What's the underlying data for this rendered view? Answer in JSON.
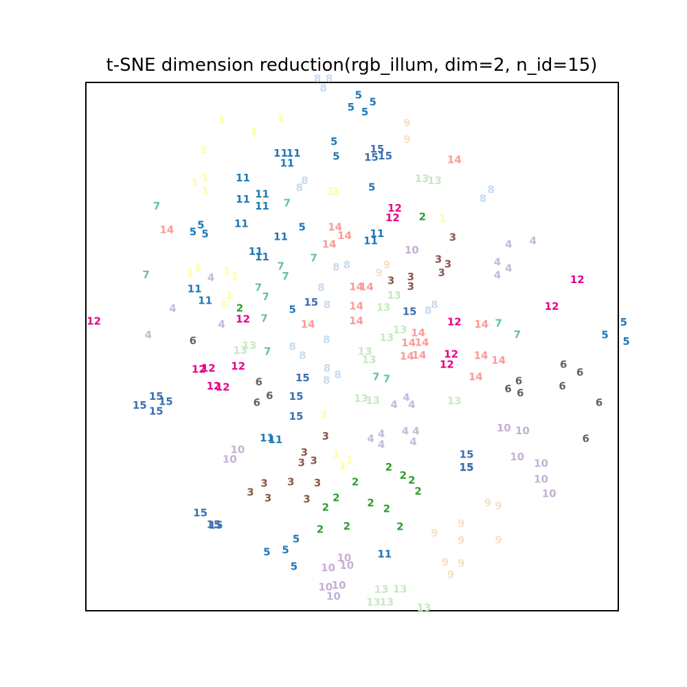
{
  "chart_data": {
    "type": "scatter",
    "title": "t-SNE dimension reduction(rgb_illum, dim=2, n_id=15)",
    "xlabel": "",
    "ylabel": "",
    "xlim": [
      0,
      100
    ],
    "ylim": [
      0,
      100
    ],
    "grid": false,
    "legend": "none",
    "colors": {
      "1": "#ffff99",
      "2": "#2ca02c",
      "3": "#8c564b",
      "4": "#bcbddc",
      "5": "#1f77b4",
      "6": "#636363",
      "7": "#66c2a5",
      "8": "#c6dbef",
      "9": "#f5e1c8",
      "10": "#c5b0d5",
      "11": "#1f77b4",
      "12": "#e7008a",
      "13": "#c7e9c0",
      "14": "#fb9a99",
      "15": "#3a6eb0"
    },
    "points": [
      {
        "l": "1",
        "x": 25.5,
        "y": 92.9
      },
      {
        "l": "1",
        "x": 31.6,
        "y": 90.7
      },
      {
        "l": "1",
        "x": 36.6,
        "y": 93.3
      },
      {
        "l": "1",
        "x": 22.1,
        "y": 87.2
      },
      {
        "l": "1",
        "x": 22.4,
        "y": 81.9
      },
      {
        "l": "1",
        "x": 20.5,
        "y": 81.0
      },
      {
        "l": "1",
        "x": 22.4,
        "y": 79.5
      },
      {
        "l": "1",
        "x": 19.6,
        "y": 64.0
      },
      {
        "l": "1",
        "x": 21.1,
        "y": 64.8
      },
      {
        "l": "1",
        "x": 26.5,
        "y": 64.3
      },
      {
        "l": "1",
        "x": 28.0,
        "y": 63.3
      },
      {
        "l": "1",
        "x": 25.9,
        "y": 58.0
      },
      {
        "l": "1",
        "x": 26.9,
        "y": 59.7
      },
      {
        "l": "1",
        "x": 46.0,
        "y": 79.4
      },
      {
        "l": "1",
        "x": 47.0,
        "y": 79.4
      },
      {
        "l": "1",
        "x": 67.0,
        "y": 74.2
      },
      {
        "l": "1",
        "x": 44.8,
        "y": 37.1
      },
      {
        "l": "1",
        "x": 47.0,
        "y": 29.6
      },
      {
        "l": "1",
        "x": 48.2,
        "y": 27.4
      },
      {
        "l": "1",
        "x": 49.5,
        "y": 28.5
      },
      {
        "l": "2",
        "x": 63.2,
        "y": 74.6
      },
      {
        "l": "2",
        "x": 28.9,
        "y": 57.3
      },
      {
        "l": "2",
        "x": 56.9,
        "y": 27.2
      },
      {
        "l": "2",
        "x": 59.6,
        "y": 25.6
      },
      {
        "l": "2",
        "x": 61.2,
        "y": 24.7
      },
      {
        "l": "2",
        "x": 50.6,
        "y": 24.4
      },
      {
        "l": "2",
        "x": 62.4,
        "y": 22.6
      },
      {
        "l": "2",
        "x": 47.0,
        "y": 21.4
      },
      {
        "l": "2",
        "x": 45.0,
        "y": 19.6
      },
      {
        "l": "2",
        "x": 53.5,
        "y": 20.4
      },
      {
        "l": "2",
        "x": 56.5,
        "y": 19.3
      },
      {
        "l": "2",
        "x": 44.0,
        "y": 15.4
      },
      {
        "l": "2",
        "x": 49.0,
        "y": 16.0
      },
      {
        "l": "2",
        "x": 59.0,
        "y": 15.9
      },
      {
        "l": "3",
        "x": 68.9,
        "y": 70.7
      },
      {
        "l": "3",
        "x": 66.2,
        "y": 66.5
      },
      {
        "l": "3",
        "x": 68.0,
        "y": 65.6
      },
      {
        "l": "3",
        "x": 66.8,
        "y": 64.0
      },
      {
        "l": "3",
        "x": 61.0,
        "y": 63.2
      },
      {
        "l": "3",
        "x": 57.3,
        "y": 62.5
      },
      {
        "l": "3",
        "x": 61.0,
        "y": 61.4
      },
      {
        "l": "3",
        "x": 45.0,
        "y": 33.0
      },
      {
        "l": "3",
        "x": 41.0,
        "y": 30.0
      },
      {
        "l": "3",
        "x": 40.5,
        "y": 28.0
      },
      {
        "l": "3",
        "x": 42.8,
        "y": 28.4
      },
      {
        "l": "3",
        "x": 33.5,
        "y": 24.1
      },
      {
        "l": "3",
        "x": 38.5,
        "y": 24.4
      },
      {
        "l": "3",
        "x": 43.5,
        "y": 24.2
      },
      {
        "l": "3",
        "x": 30.9,
        "y": 22.4
      },
      {
        "l": "3",
        "x": 34.2,
        "y": 21.3
      },
      {
        "l": "3",
        "x": 41.5,
        "y": 21.1
      },
      {
        "l": "4",
        "x": 79.4,
        "y": 69.4
      },
      {
        "l": "4",
        "x": 84.0,
        "y": 70.0
      },
      {
        "l": "4",
        "x": 77.3,
        "y": 66.0
      },
      {
        "l": "4",
        "x": 79.4,
        "y": 64.8
      },
      {
        "l": "4",
        "x": 77.3,
        "y": 63.5
      },
      {
        "l": "4",
        "x": 23.5,
        "y": 63.1
      },
      {
        "l": "4",
        "x": 16.3,
        "y": 57.2
      },
      {
        "l": "4",
        "x": 25.5,
        "y": 54.2
      },
      {
        "l": "4",
        "x": 11.7,
        "y": 52.2
      },
      {
        "l": "4",
        "x": 60.2,
        "y": 40.4
      },
      {
        "l": "4",
        "x": 57.9,
        "y": 39.0
      },
      {
        "l": "4",
        "x": 61.2,
        "y": 39.0
      },
      {
        "l": "4",
        "x": 55.5,
        "y": 33.5
      },
      {
        "l": "4",
        "x": 53.5,
        "y": 32.6
      },
      {
        "l": "4",
        "x": 55.5,
        "y": 31.5
      },
      {
        "l": "4",
        "x": 60.0,
        "y": 34.0
      },
      {
        "l": "4",
        "x": 62.0,
        "y": 34.0
      },
      {
        "l": "4",
        "x": 61.5,
        "y": 32.0
      },
      {
        "l": "5",
        "x": 51.2,
        "y": 97.6
      },
      {
        "l": "5",
        "x": 53.9,
        "y": 96.3
      },
      {
        "l": "5",
        "x": 49.8,
        "y": 95.3
      },
      {
        "l": "5",
        "x": 52.4,
        "y": 94.4
      },
      {
        "l": "5",
        "x": 46.6,
        "y": 88.8
      },
      {
        "l": "5",
        "x": 47.0,
        "y": 86.0
      },
      {
        "l": "5",
        "x": 53.7,
        "y": 80.2
      },
      {
        "l": "5",
        "x": 21.6,
        "y": 73.0
      },
      {
        "l": "5",
        "x": 20.1,
        "y": 71.7
      },
      {
        "l": "5",
        "x": 22.4,
        "y": 71.3
      },
      {
        "l": "5",
        "x": 40.6,
        "y": 72.6
      },
      {
        "l": "5",
        "x": 38.8,
        "y": 57.0
      },
      {
        "l": "5",
        "x": 101.0,
        "y": 54.6
      },
      {
        "l": "5",
        "x": 97.5,
        "y": 52.2
      },
      {
        "l": "5",
        "x": 101.5,
        "y": 51.0
      },
      {
        "l": "5",
        "x": 39.5,
        "y": 13.6
      },
      {
        "l": "5",
        "x": 37.5,
        "y": 11.5
      },
      {
        "l": "5",
        "x": 34.0,
        "y": 11.1
      },
      {
        "l": "5",
        "x": 39.1,
        "y": 8.4
      },
      {
        "l": "11",
        "x": 36.6,
        "y": 86.6
      },
      {
        "l": "11",
        "x": 39.0,
        "y": 86.6
      },
      {
        "l": "11",
        "x": 37.8,
        "y": 84.7
      },
      {
        "l": "11",
        "x": 29.5,
        "y": 81.9
      },
      {
        "l": "11",
        "x": 33.1,
        "y": 78.9
      },
      {
        "l": "11",
        "x": 29.5,
        "y": 77.9
      },
      {
        "l": "11",
        "x": 33.1,
        "y": 76.6
      },
      {
        "l": "11",
        "x": 29.2,
        "y": 73.3
      },
      {
        "l": "11",
        "x": 36.6,
        "y": 70.8
      },
      {
        "l": "11",
        "x": 31.9,
        "y": 68.0
      },
      {
        "l": "11",
        "x": 33.1,
        "y": 67.0
      },
      {
        "l": "11",
        "x": 54.7,
        "y": 71.4
      },
      {
        "l": "11",
        "x": 53.5,
        "y": 70.0
      },
      {
        "l": "11",
        "x": 20.4,
        "y": 60.9
      },
      {
        "l": "11",
        "x": 22.4,
        "y": 58.7
      },
      {
        "l": "11",
        "x": 34.0,
        "y": 32.7
      },
      {
        "l": "11",
        "x": 35.6,
        "y": 32.4
      },
      {
        "l": "11",
        "x": 56.1,
        "y": 10.7
      },
      {
        "l": "6",
        "x": 20.1,
        "y": 51.1
      },
      {
        "l": "6",
        "x": 32.5,
        "y": 43.3
      },
      {
        "l": "6",
        "x": 34.5,
        "y": 40.7
      },
      {
        "l": "6",
        "x": 32.1,
        "y": 39.4
      },
      {
        "l": "6",
        "x": 89.7,
        "y": 46.6
      },
      {
        "l": "6",
        "x": 92.8,
        "y": 45.1
      },
      {
        "l": "6",
        "x": 81.3,
        "y": 43.5
      },
      {
        "l": "6",
        "x": 79.3,
        "y": 42.0
      },
      {
        "l": "6",
        "x": 81.6,
        "y": 41.2
      },
      {
        "l": "6",
        "x": 89.5,
        "y": 42.5
      },
      {
        "l": "6",
        "x": 96.4,
        "y": 39.4
      },
      {
        "l": "6",
        "x": 93.9,
        "y": 32.6
      },
      {
        "l": "7",
        "x": 13.3,
        "y": 76.6
      },
      {
        "l": "7",
        "x": 37.8,
        "y": 77.2
      },
      {
        "l": "7",
        "x": 11.3,
        "y": 63.6
      },
      {
        "l": "7",
        "x": 36.6,
        "y": 65.2
      },
      {
        "l": "7",
        "x": 42.8,
        "y": 66.8
      },
      {
        "l": "7",
        "x": 37.5,
        "y": 63.3
      },
      {
        "l": "7",
        "x": 32.4,
        "y": 61.2
      },
      {
        "l": "7",
        "x": 33.8,
        "y": 59.4
      },
      {
        "l": "7",
        "x": 33.5,
        "y": 55.3
      },
      {
        "l": "7",
        "x": 34.1,
        "y": 49.1
      },
      {
        "l": "7",
        "x": 77.5,
        "y": 54.4
      },
      {
        "l": "7",
        "x": 81.0,
        "y": 52.3
      },
      {
        "l": "7",
        "x": 54.5,
        "y": 44.3
      },
      {
        "l": "7",
        "x": 56.5,
        "y": 43.9
      },
      {
        "l": "8",
        "x": 43.5,
        "y": 100.7
      },
      {
        "l": "8",
        "x": 45.7,
        "y": 100.7
      },
      {
        "l": "8",
        "x": 44.6,
        "y": 98.9
      },
      {
        "l": "8",
        "x": 41.1,
        "y": 81.4
      },
      {
        "l": "8",
        "x": 40.1,
        "y": 80.1
      },
      {
        "l": "8",
        "x": 76.1,
        "y": 79.7
      },
      {
        "l": "8",
        "x": 74.6,
        "y": 78.0
      },
      {
        "l": "8",
        "x": 47.0,
        "y": 65.0
      },
      {
        "l": "8",
        "x": 49.0,
        "y": 65.5
      },
      {
        "l": "8",
        "x": 44.2,
        "y": 61.2
      },
      {
        "l": "8",
        "x": 45.3,
        "y": 57.9
      },
      {
        "l": "8",
        "x": 65.5,
        "y": 57.9
      },
      {
        "l": "8",
        "x": 64.3,
        "y": 56.8
      },
      {
        "l": "8",
        "x": 38.8,
        "y": 50.0
      },
      {
        "l": "8",
        "x": 40.7,
        "y": 48.3
      },
      {
        "l": "8",
        "x": 45.2,
        "y": 51.3
      },
      {
        "l": "8",
        "x": 45.3,
        "y": 45.9
      },
      {
        "l": "8",
        "x": 47.3,
        "y": 44.7
      },
      {
        "l": "8",
        "x": 45.2,
        "y": 43.6
      },
      {
        "l": "9",
        "x": 60.3,
        "y": 92.3
      },
      {
        "l": "9",
        "x": 60.3,
        "y": 89.2
      },
      {
        "l": "9",
        "x": 56.5,
        "y": 65.5
      },
      {
        "l": "9",
        "x": 55.0,
        "y": 64.0
      },
      {
        "l": "9",
        "x": 75.5,
        "y": 20.4
      },
      {
        "l": "9",
        "x": 77.5,
        "y": 19.9
      },
      {
        "l": "9",
        "x": 70.5,
        "y": 16.5
      },
      {
        "l": "9",
        "x": 65.5,
        "y": 14.7
      },
      {
        "l": "9",
        "x": 70.5,
        "y": 13.3
      },
      {
        "l": "9",
        "x": 77.5,
        "y": 13.4
      },
      {
        "l": "9",
        "x": 67.5,
        "y": 9.2
      },
      {
        "l": "9",
        "x": 70.5,
        "y": 9.0
      },
      {
        "l": "9",
        "x": 68.5,
        "y": 6.8
      },
      {
        "l": "10",
        "x": 61.2,
        "y": 68.3
      },
      {
        "l": "10",
        "x": 78.5,
        "y": 34.6
      },
      {
        "l": "10",
        "x": 82.0,
        "y": 34.1
      },
      {
        "l": "10",
        "x": 28.5,
        "y": 30.5
      },
      {
        "l": "10",
        "x": 27.0,
        "y": 28.7
      },
      {
        "l": "10",
        "x": 81.0,
        "y": 29.1
      },
      {
        "l": "10",
        "x": 85.5,
        "y": 27.9
      },
      {
        "l": "10",
        "x": 85.5,
        "y": 24.9
      },
      {
        "l": "10",
        "x": 87.0,
        "y": 22.2
      },
      {
        "l": "10",
        "x": 48.5,
        "y": 10.0
      },
      {
        "l": "10",
        "x": 45.5,
        "y": 8.1
      },
      {
        "l": "10",
        "x": 49.0,
        "y": 8.6
      },
      {
        "l": "10",
        "x": 45.0,
        "y": 4.5
      },
      {
        "l": "10",
        "x": 47.5,
        "y": 4.8
      },
      {
        "l": "10",
        "x": 46.5,
        "y": 2.7
      },
      {
        "l": "12",
        "x": 58.0,
        "y": 76.2
      },
      {
        "l": "12",
        "x": 57.6,
        "y": 74.4
      },
      {
        "l": "12",
        "x": 92.3,
        "y": 62.7
      },
      {
        "l": "12",
        "x": 87.5,
        "y": 57.6
      },
      {
        "l": "12",
        "x": 1.5,
        "y": 54.8
      },
      {
        "l": "12",
        "x": 29.5,
        "y": 55.2
      },
      {
        "l": "12",
        "x": 69.2,
        "y": 54.7
      },
      {
        "l": "12",
        "x": 68.6,
        "y": 48.6
      },
      {
        "l": "12",
        "x": 67.8,
        "y": 46.6
      },
      {
        "l": "12",
        "x": 28.6,
        "y": 46.3
      },
      {
        "l": "12",
        "x": 21.2,
        "y": 45.7
      },
      {
        "l": "12",
        "x": 23.0,
        "y": 45.9
      },
      {
        "l": "12",
        "x": 25.7,
        "y": 42.3
      },
      {
        "l": "12",
        "x": 24.0,
        "y": 42.5
      },
      {
        "l": "13",
        "x": 63.1,
        "y": 81.8
      },
      {
        "l": "13",
        "x": 65.5,
        "y": 81.4
      },
      {
        "l": "13",
        "x": 57.9,
        "y": 59.7
      },
      {
        "l": "13",
        "x": 55.9,
        "y": 57.4
      },
      {
        "l": "13",
        "x": 29.0,
        "y": 49.3
      },
      {
        "l": "13",
        "x": 30.7,
        "y": 50.2
      },
      {
        "l": "13",
        "x": 52.4,
        "y": 49.1
      },
      {
        "l": "13",
        "x": 53.2,
        "y": 47.5
      },
      {
        "l": "13",
        "x": 59.0,
        "y": 53.2
      },
      {
        "l": "13",
        "x": 56.5,
        "y": 51.7
      },
      {
        "l": "13",
        "x": 51.7,
        "y": 40.2
      },
      {
        "l": "13",
        "x": 53.9,
        "y": 39.8
      },
      {
        "l": "13",
        "x": 69.2,
        "y": 39.7
      },
      {
        "l": "13",
        "x": 55.5,
        "y": 4.0
      },
      {
        "l": "13",
        "x": 59.0,
        "y": 4.1
      },
      {
        "l": "13",
        "x": 54.0,
        "y": 1.6
      },
      {
        "l": "13",
        "x": 56.5,
        "y": 1.6
      },
      {
        "l": "13",
        "x": 63.5,
        "y": 0.6
      },
      {
        "l": "14",
        "x": 69.2,
        "y": 85.4
      },
      {
        "l": "14",
        "x": 15.2,
        "y": 72.1
      },
      {
        "l": "14",
        "x": 46.8,
        "y": 72.6
      },
      {
        "l": "14",
        "x": 48.6,
        "y": 71.0
      },
      {
        "l": "14",
        "x": 45.7,
        "y": 69.4
      },
      {
        "l": "14",
        "x": 50.8,
        "y": 61.3
      },
      {
        "l": "14",
        "x": 52.7,
        "y": 61.3
      },
      {
        "l": "14",
        "x": 50.8,
        "y": 57.7
      },
      {
        "l": "14",
        "x": 50.8,
        "y": 54.9
      },
      {
        "l": "14",
        "x": 41.7,
        "y": 54.2
      },
      {
        "l": "14",
        "x": 62.4,
        "y": 52.6
      },
      {
        "l": "14",
        "x": 60.6,
        "y": 50.7
      },
      {
        "l": "14",
        "x": 63.1,
        "y": 50.8
      },
      {
        "l": "14",
        "x": 60.3,
        "y": 48.2
      },
      {
        "l": "14",
        "x": 62.6,
        "y": 48.4
      },
      {
        "l": "14",
        "x": 74.3,
        "y": 54.2
      },
      {
        "l": "14",
        "x": 74.2,
        "y": 48.3
      },
      {
        "l": "14",
        "x": 77.5,
        "y": 47.4
      },
      {
        "l": "14",
        "x": 73.2,
        "y": 44.3
      },
      {
        "l": "15",
        "x": 54.7,
        "y": 87.4
      },
      {
        "l": "15",
        "x": 53.6,
        "y": 85.8
      },
      {
        "l": "15",
        "x": 56.2,
        "y": 86.1
      },
      {
        "l": "15",
        "x": 42.3,
        "y": 58.4
      },
      {
        "l": "15",
        "x": 60.8,
        "y": 56.6
      },
      {
        "l": "15",
        "x": 40.7,
        "y": 44.1
      },
      {
        "l": "15",
        "x": 39.5,
        "y": 40.6
      },
      {
        "l": "15",
        "x": 39.5,
        "y": 36.8
      },
      {
        "l": "15",
        "x": 13.2,
        "y": 40.6
      },
      {
        "l": "15",
        "x": 15.0,
        "y": 39.6
      },
      {
        "l": "15",
        "x": 10.1,
        "y": 38.9
      },
      {
        "l": "15",
        "x": 13.2,
        "y": 37.8
      },
      {
        "l": "15",
        "x": 71.5,
        "y": 29.6
      },
      {
        "l": "15",
        "x": 71.5,
        "y": 27.2
      },
      {
        "l": "15",
        "x": 71.5,
        "y": 27.1
      },
      {
        "l": "15",
        "x": 21.5,
        "y": 18.5
      },
      {
        "l": "15",
        "x": 24.0,
        "y": 16.3
      },
      {
        "l": "15",
        "x": 24.4,
        "y": 16.2
      }
    ]
  }
}
